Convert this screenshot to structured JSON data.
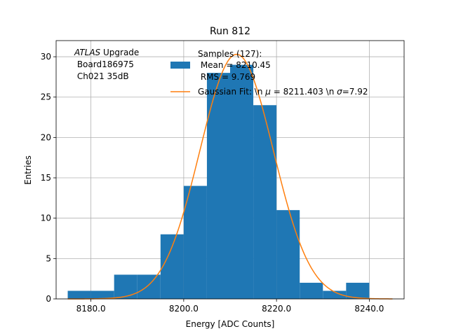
{
  "chart_data": {
    "type": "histogram",
    "title": "Run 812",
    "xlabel": "Energy [ADC Counts]",
    "ylabel": "Entries",
    "xlim": [
      8172.5,
      8247.5
    ],
    "ylim": [
      0,
      32
    ],
    "grid": true,
    "xticks": [
      8180,
      8200,
      8220,
      8240
    ],
    "xtick_labels": [
      "8180.0",
      "8200.0",
      "8220.0",
      "8240.0"
    ],
    "yticks": [
      0,
      5,
      10,
      15,
      20,
      25,
      30
    ],
    "ytick_labels": [
      "0",
      "5",
      "10",
      "15",
      "20",
      "25",
      "30"
    ],
    "bins": {
      "edges": [
        8175,
        8180,
        8185,
        8190,
        8195,
        8200,
        8205,
        8210,
        8215,
        8220,
        8225,
        8230,
        8235,
        8240
      ],
      "counts": [
        1,
        1,
        3,
        3,
        8,
        14,
        28,
        29,
        24,
        11,
        2,
        1,
        2
      ],
      "color": "#1f77b4"
    },
    "fit": {
      "mu": 8211.403,
      "sigma": 7.92,
      "amplitude": 30.3,
      "color": "#ff7f0e"
    },
    "annotation": {
      "line1_italic": "ATLAS",
      "line1_rest": " Upgrade",
      "line2": " Board186975",
      "line3": " Ch021 35dB"
    },
    "legend": {
      "position": "top-right",
      "hist_label_lines": [
        "Samples (127):",
        " Mean = 8210.45",
        " RMS = 9.769"
      ],
      "fit_label_pre": "Gaussian Fit: \\n ",
      "fit_label_mu": "μ",
      "fit_label_mid": " = 8211.403 \\n ",
      "fit_label_sigma": "σ",
      "fit_label_post": "=7.92"
    }
  }
}
